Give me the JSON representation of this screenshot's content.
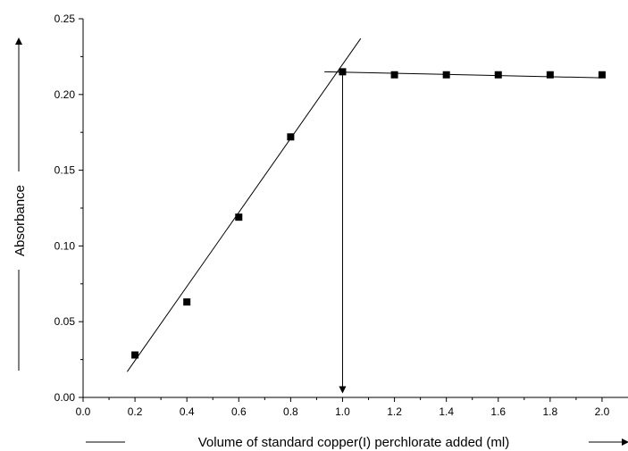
{
  "chart_data": {
    "type": "scatter",
    "title": "",
    "xlabel": "Volume of standard copper(I) perchlorate added (ml)",
    "ylabel": "Absorbance",
    "xlim": [
      0.0,
      2.1
    ],
    "ylim": [
      0.0,
      0.25
    ],
    "x_ticks": [
      "0.0",
      "0.2",
      "0.4",
      "0.6",
      "0.8",
      "1.0",
      "1.2",
      "1.4",
      "1.6",
      "1.8",
      "2.0"
    ],
    "y_ticks": [
      "0.00",
      "0.05",
      "0.10",
      "0.15",
      "0.20",
      "0.25"
    ],
    "grid": false,
    "legend": "none",
    "marker": "filled-square",
    "color": "#000000",
    "series": [
      {
        "x": [
          0.2,
          0.4,
          0.6,
          0.8,
          1.0,
          1.2,
          1.4,
          1.6,
          1.8,
          2.0
        ],
        "y": [
          0.028,
          0.063,
          0.119,
          0.172,
          0.215,
          0.213,
          0.213,
          0.213,
          0.213,
          0.213
        ]
      }
    ],
    "fit_lines": [
      {
        "x": [
          0.17,
          1.07
        ],
        "y": [
          0.017,
          0.237
        ]
      },
      {
        "x": [
          0.93,
          2.0
        ],
        "y": [
          0.215,
          0.211
        ]
      }
    ],
    "annotations": [
      {
        "type": "arrow",
        "from": [
          1.0,
          0.215
        ],
        "to": [
          1.0,
          0.005
        ]
      }
    ]
  }
}
